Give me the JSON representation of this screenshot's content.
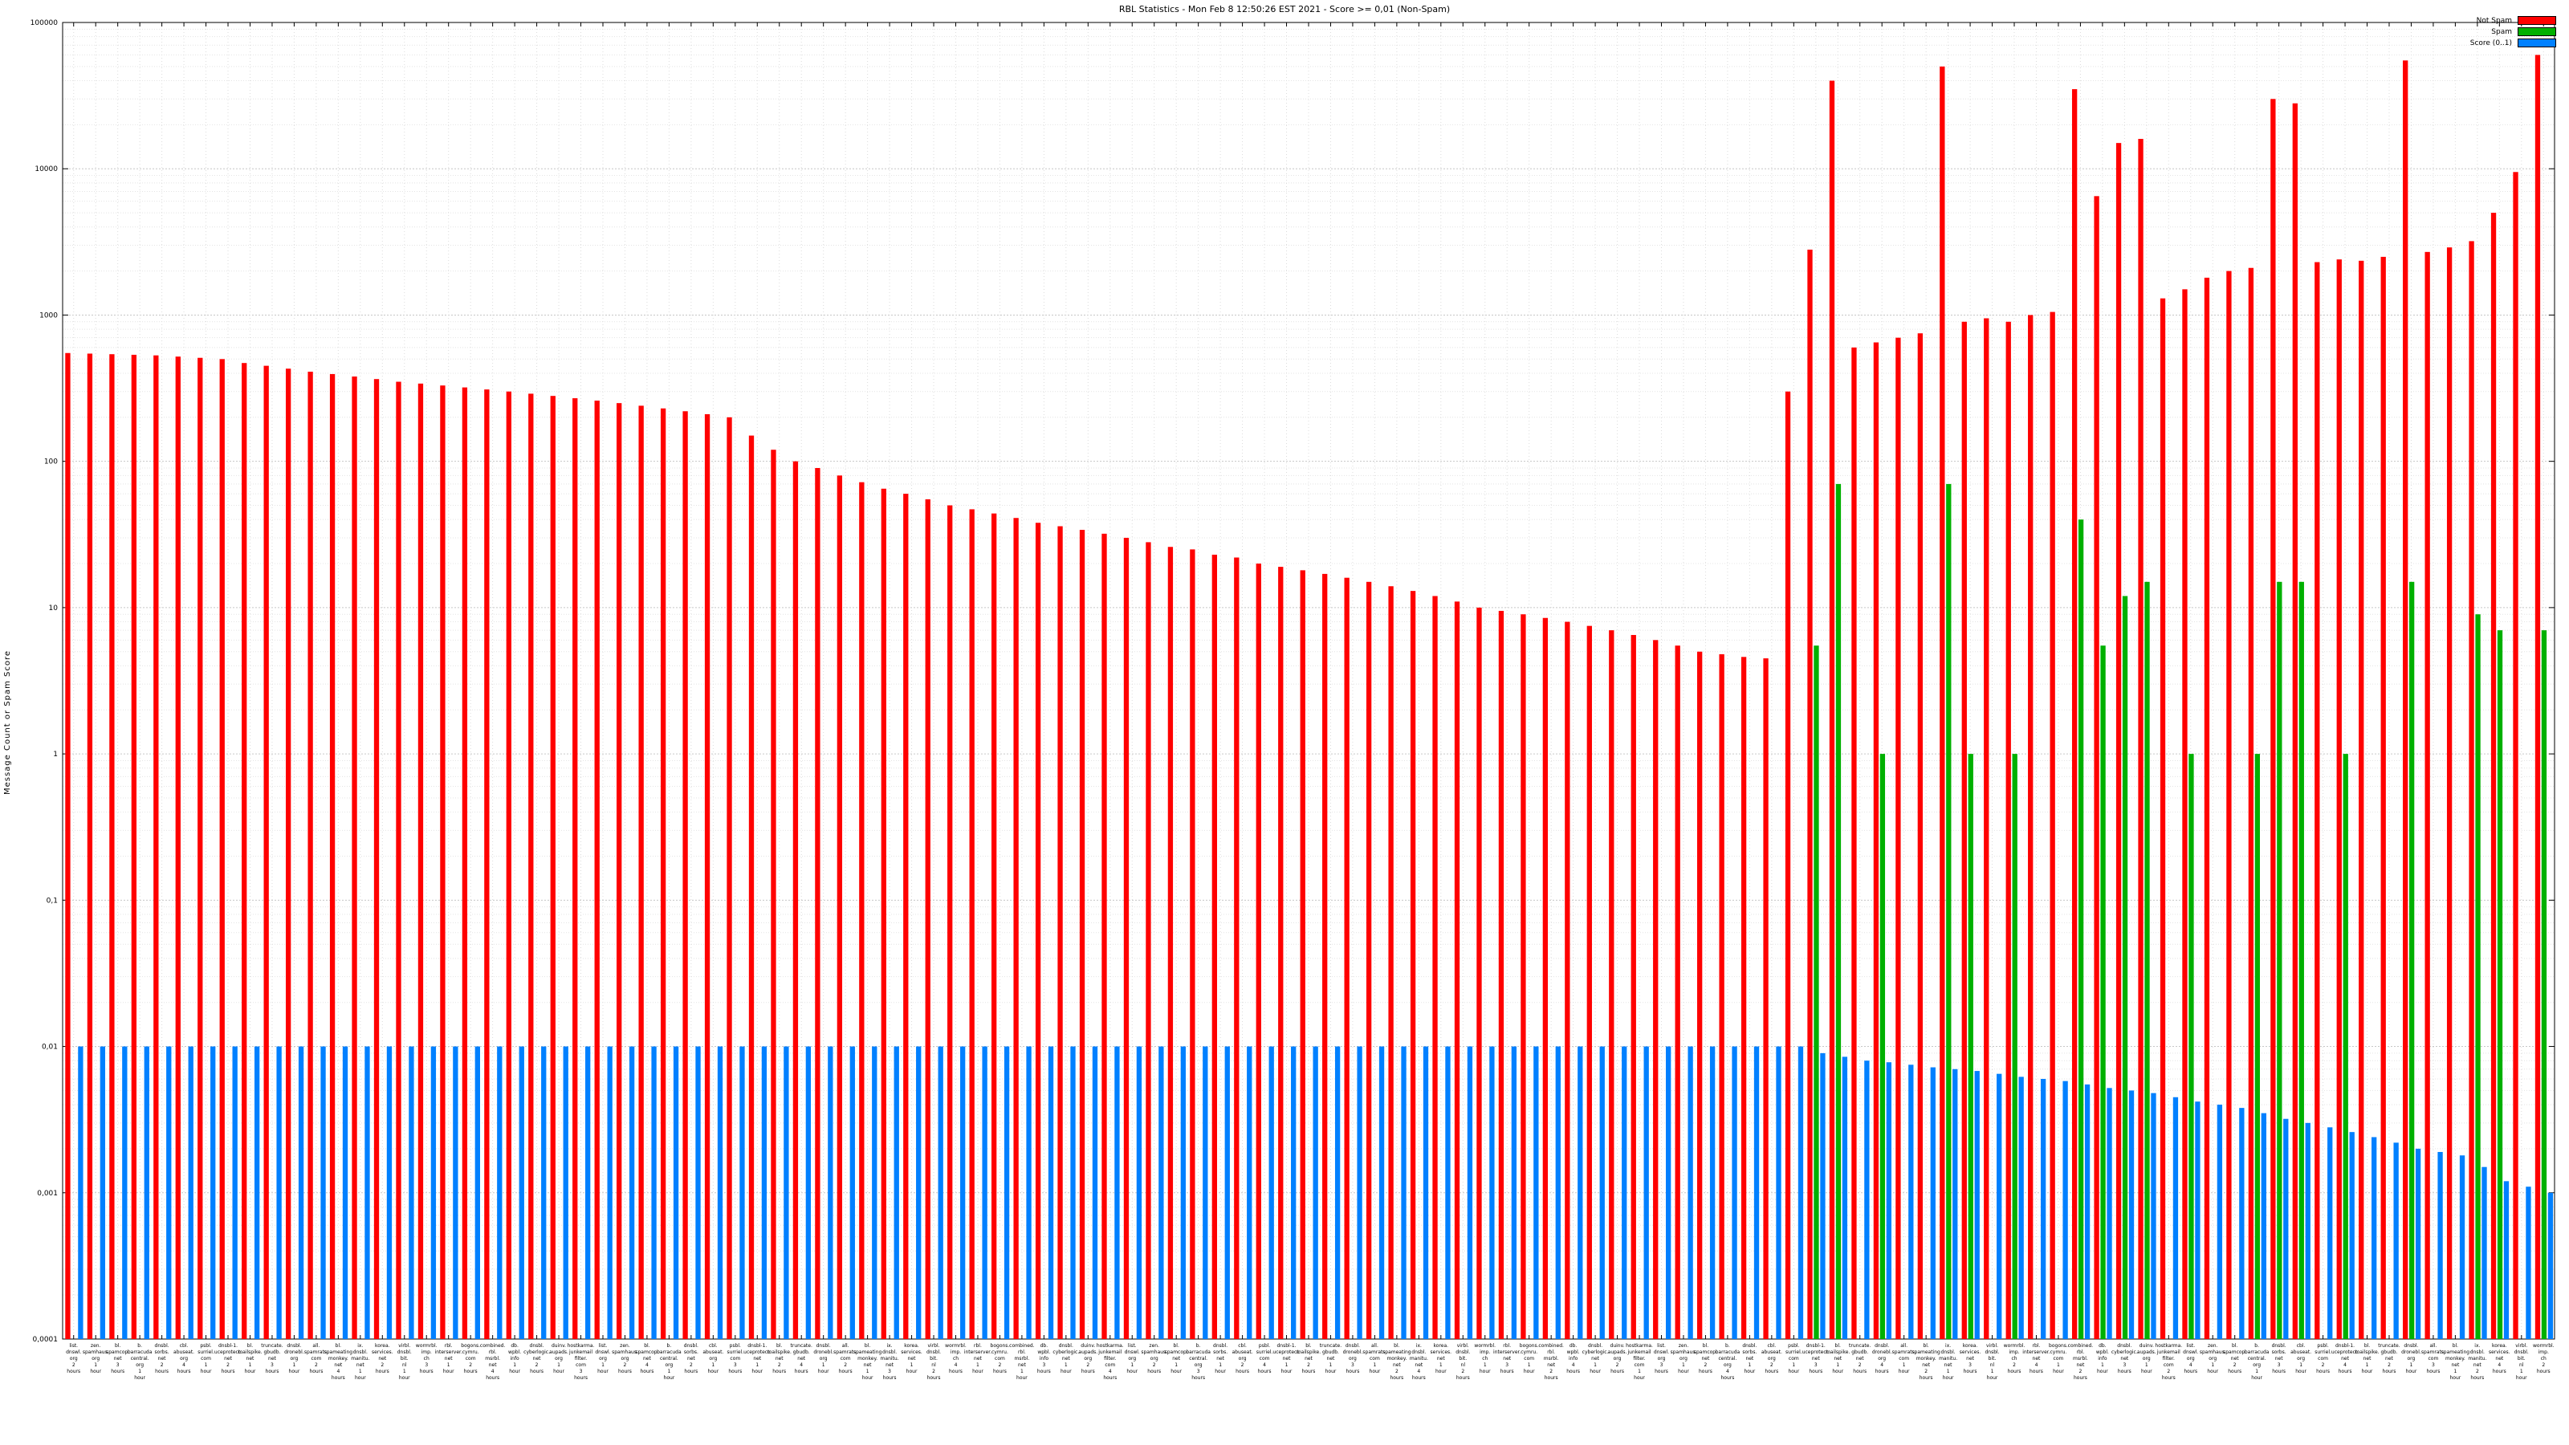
{
  "title": "RBL Statistics - Mon Feb  8 12:50:26 EST 2021 - Score >= 0,01 (Non-Spam)",
  "ylabel": "Message Count or Spam Score",
  "legend": [
    {
      "label": "Not Spam",
      "color": "#ff0000"
    },
    {
      "label": "Spam",
      "color": "#00b000"
    },
    {
      "label": "Score (0..1)",
      "color": "#0080ff"
    }
  ],
  "chart_data": {
    "type": "bar",
    "title": "RBL Statistics - Mon Feb  8 12:50:26 EST 2021 - Score >= 0,01 (Non-Spam)",
    "xlabel": "",
    "ylabel": "Message Count or Spam Score",
    "y_scale": "log",
    "ylim": [
      0.0001,
      100000
    ],
    "y_ticks": [
      "100000",
      "10000",
      "1000",
      "100",
      "10",
      "1",
      "0,1",
      "0,01",
      "0,001",
      "0,0001"
    ],
    "y_tick_values": [
      100000,
      10000,
      1000,
      100,
      10,
      1,
      0.1,
      0.01,
      0.001,
      0.0001
    ],
    "grid": true,
    "legend_position": "top-right",
    "categories": [
      "list. dnswl. org 2 hours",
      "zen. spamhaus. org 1 hour",
      "bl. spamcop. net 3 hours",
      "b. barracuda central. org 1 hour",
      "dnsbl. sorbs. net 2 hours",
      "cbl. abuseat. org 4 hours",
      "psbl. surriel. com 1 hour",
      "dnsbl-1. uceprotect. net 2 hours",
      "bl. mailspike. net 1 hour",
      "truncate. gbudb. net 3 hours",
      "dnsbl. dronebl. org 1 hour",
      "all. spamrats. com 2 hours",
      "bl. spameating monkey. net 4 hours",
      "ix. dnsbl. manitu. net 1 hour",
      "korea. services. net 2 hours",
      "virbl. dnsbl. bit. nl 1 hour",
      "wormrbl. imp. ch 3 hours",
      "rbl. interserver. net 1 hour",
      "bogons. cymru. com 2 hours",
      "combined. rbl. msrbl. net 4 hours",
      "db. wpbl. info 1 hour",
      "dnsbl. cyberlogic. net 2 hours",
      "duinv. aupads. org 1 hour",
      "hostkarma. junkemail filter. com 3 hours",
      "list. dnswl. org 1 hour",
      "zen. spamhaus. org 2 hours",
      "bl. spamcop. net 4 hours",
      "b. barracuda central. org 1 hour",
      "dnsbl. sorbs. net 2 hours",
      "cbl. abuseat. org 1 hour",
      "psbl. surriel. com 3 hours",
      "dnsbl-1. uceprotect. net 1 hour",
      "bl. mailspike. net 2 hours",
      "truncate. gbudb. net 4 hours",
      "dnsbl. dronebl. org 1 hour",
      "all. spamrats. com 2 hours",
      "bl. spameating monkey. net 1 hour",
      "ix. dnsbl. manitu. net 3 hours",
      "korea. services. net 1 hour",
      "virbl. dnsbl. bit. nl 2 hours",
      "wormrbl. imp. ch 4 hours",
      "rbl. interserver. net 1 hour",
      "bogons. cymru. com 2 hours",
      "combined. rbl. msrbl. net 1 hour",
      "db. wpbl. info 3 hours",
      "dnsbl. cyberlogic. net 1 hour",
      "duinv. aupads. org 2 hours",
      "hostkarma. junkemail filter. com 4 hours",
      "list. dnswl. org 1 hour",
      "zen. spamhaus. org 2 hours",
      "bl. spamcop. net 1 hour",
      "b. barracuda central. org 3 hours",
      "dnsbl. sorbs. net 1 hour",
      "cbl. abuseat. org 2 hours",
      "psbl. surriel. com 4 hours",
      "dnsbl-1. uceprotect. net 1 hour",
      "bl. mailspike. net 2 hours",
      "truncate. gbudb. net 1 hour",
      "dnsbl. dronebl. org 3 hours",
      "all. spamrats. com 1 hour",
      "bl. spameating monkey. net 2 hours",
      "ix. dnsbl. manitu. net 4 hours",
      "korea. services. net 1 hour",
      "virbl. dnsbl. bit. nl 2 hours",
      "wormrbl. imp. ch 1 hour",
      "rbl. interserver. net 3 hours",
      "bogons. cymru. com 1 hour",
      "combined. rbl. msrbl. net 2 hours",
      "db. wpbl. info 4 hours",
      "dnsbl. cyberlogic. net 1 hour",
      "duinv. aupads. org 2 hours",
      "hostkarma. junkemail filter. com 1 hour",
      "list. dnswl. org 3 hours",
      "zen. spamhaus. org 1 hour",
      "bl. spamcop. net 2 hours",
      "b. barracuda central. org 4 hours",
      "dnsbl. sorbs. net 1 hour",
      "cbl. abuseat. org 2 hours",
      "psbl. surriel. com 1 hour",
      "dnsbl-1. uceprotect. net 3 hours",
      "bl. mailspike. net 1 hour",
      "truncate. gbudb. net 2 hours",
      "dnsbl. dronebl. org 4 hours",
      "all. spamrats. com 1 hour",
      "bl. spameating monkey. net 2 hours",
      "ix. dnsbl. manitu. net 1 hour",
      "korea. services. net 3 hours",
      "virbl. dnsbl. bit. nl 1 hour",
      "wormrbl. imp. ch 2 hours",
      "rbl. interserver. net 4 hours",
      "bogons. cymru. com 1 hour",
      "combined. rbl. msrbl. net 2 hours",
      "db. wpbl. info 1 hour",
      "dnsbl. cyberlogic. net 3 hours",
      "duinv. aupads. org 1 hour",
      "hostkarma. junkemail filter. com 2 hours",
      "list. dnswl. org 4 hours",
      "zen. spamhaus. org 1 hour",
      "bl. spamcop. net 2 hours",
      "b. barracuda central. org 1 hour",
      "dnsbl. sorbs. net 3 hours",
      "cbl. abuseat. org 1 hour",
      "psbl. surriel. com 2 hours",
      "dnsbl-1. uceprotect. net 4 hours",
      "bl. mailspike. net 1 hour",
      "truncate. gbudb. net 2 hours",
      "dnsbl. dronebl. org 1 hour",
      "all. spamrats. com 3 hours",
      "bl. spameating monkey. net 1 hour",
      "ix. dnsbl. manitu. net 2 hours",
      "korea. services. net 4 hours",
      "virbl. dnsbl. bit. nl 1 hour",
      "wormrbl. imp. ch 2 hours"
    ],
    "series": [
      {
        "name": "Not Spam",
        "color": "#ff0000",
        "values": [
          550,
          545,
          540,
          535,
          530,
          520,
          510,
          500,
          470,
          450,
          430,
          410,
          395,
          380,
          365,
          350,
          340,
          330,
          320,
          310,
          300,
          290,
          280,
          270,
          260,
          250,
          240,
          230,
          220,
          210,
          200,
          150,
          120,
          100,
          90,
          80,
          72,
          65,
          60,
          55,
          50,
          47,
          44,
          41,
          38,
          36,
          34,
          32,
          30,
          28,
          26,
          25,
          23,
          22,
          20,
          19,
          18,
          17,
          16,
          15,
          14,
          13,
          12,
          11,
          10,
          9.5,
          9,
          8.5,
          8,
          7.5,
          7,
          6.5,
          6,
          5.5,
          5,
          4.8,
          4.6,
          4.5,
          300,
          2800,
          40000,
          600,
          650,
          700,
          750,
          50000,
          900,
          950,
          900,
          1000,
          1050,
          35000,
          6500,
          15000,
          16000,
          1300,
          1500,
          1800,
          2000,
          2100,
          30000,
          28000,
          2300,
          2400,
          2350,
          2500,
          55000,
          2700,
          2900,
          3200,
          5000,
          9500,
          60000
        ]
      },
      {
        "name": "Spam",
        "color": "#00b000",
        "values": [
          0,
          0,
          0,
          0,
          0,
          0,
          0,
          0,
          0,
          0,
          0,
          0,
          0,
          0,
          0,
          0,
          0,
          0,
          0,
          0,
          0,
          0,
          0,
          0,
          0,
          0,
          0,
          0,
          0,
          0,
          0,
          0,
          0,
          0,
          0,
          0,
          0,
          0,
          0,
          0,
          0,
          0,
          0,
          0,
          0,
          0,
          0,
          0,
          0,
          0,
          0,
          0,
          0,
          0,
          0,
          0,
          0,
          0,
          0,
          0,
          0,
          0,
          0,
          0,
          0,
          0,
          0,
          0,
          0,
          0,
          0,
          0,
          0,
          0,
          0,
          0,
          0,
          0,
          0,
          5.5,
          70,
          0,
          1,
          0,
          0,
          70,
          1,
          0,
          1,
          0,
          0,
          40,
          5.5,
          12,
          15,
          0,
          1,
          0,
          0,
          1,
          15,
          15,
          0,
          1,
          0,
          0,
          15,
          0,
          0,
          9,
          7,
          0,
          7
        ]
      },
      {
        "name": "Score (0..1)",
        "color": "#0080ff",
        "values": [
          0.01,
          0.01,
          0.01,
          0.01,
          0.01,
          0.01,
          0.01,
          0.01,
          0.01,
          0.01,
          0.01,
          0.01,
          0.01,
          0.01,
          0.01,
          0.01,
          0.01,
          0.01,
          0.01,
          0.01,
          0.01,
          0.01,
          0.01,
          0.01,
          0.01,
          0.01,
          0.01,
          0.01,
          0.01,
          0.01,
          0.01,
          0.01,
          0.01,
          0.01,
          0.01,
          0.01,
          0.01,
          0.01,
          0.01,
          0.01,
          0.01,
          0.01,
          0.01,
          0.01,
          0.01,
          0.01,
          0.01,
          0.01,
          0.01,
          0.01,
          0.01,
          0.01,
          0.01,
          0.01,
          0.01,
          0.01,
          0.01,
          0.01,
          0.01,
          0.01,
          0.01,
          0.01,
          0.01,
          0.01,
          0.01,
          0.01,
          0.01,
          0.01,
          0.01,
          0.01,
          0.01,
          0.01,
          0.01,
          0.01,
          0.01,
          0.01,
          0.01,
          0.01,
          0.01,
          0.009,
          0.0085,
          0.008,
          0.0078,
          0.0075,
          0.0072,
          0.007,
          0.0068,
          0.0065,
          0.0062,
          0.006,
          0.0058,
          0.0055,
          0.0052,
          0.005,
          0.0048,
          0.0045,
          0.0042,
          0.004,
          0.0038,
          0.0035,
          0.0032,
          0.003,
          0.0028,
          0.0026,
          0.0024,
          0.0022,
          0.002,
          0.0019,
          0.0018,
          0.0015,
          0.0012,
          0.0011,
          0.001
        ]
      }
    ]
  }
}
